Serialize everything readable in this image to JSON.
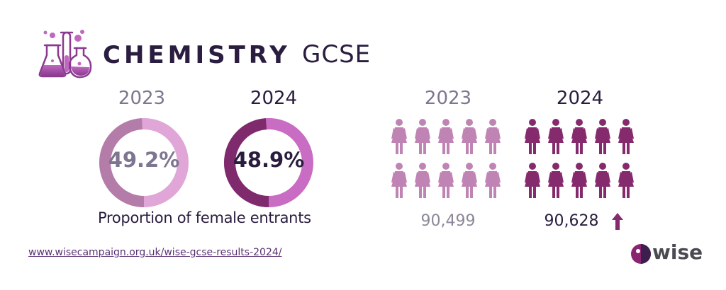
{
  "title": {
    "main": "CHEMISTRY",
    "sub": "GCSE"
  },
  "proportion": {
    "caption": "Proportion of female entrants",
    "items": [
      {
        "year": "2023",
        "value_label": "49.2%",
        "value": 49.2,
        "color_main": "#b47ca8",
        "color_accent": "#e0a6d8",
        "text_color": "#7e7590"
      },
      {
        "year": "2024",
        "value_label": "48.9%",
        "value": 48.9,
        "color_main": "#7e2a6c",
        "color_accent": "#c96cc3",
        "text_color": "#2a1d3f"
      }
    ]
  },
  "entrants": {
    "items": [
      {
        "year": "2023",
        "count": "90,499",
        "icon_color": "#c084b4",
        "icons_per_row": 5,
        "rows": 2
      },
      {
        "year": "2024",
        "count": "90,628",
        "icon_color": "#862a6e",
        "icons_per_row": 5,
        "rows": 2,
        "trend": "up",
        "trend_icon": "up-arrow-icon",
        "trend_color": "#862a6e"
      }
    ]
  },
  "footer": {
    "url": "www.wisecampaign.org.uk/wise-gcse-results-2024/",
    "brand": "wise",
    "brand_colors": {
      "outer": "#8a2470",
      "inner": "#3d1f4d",
      "dot": "#ffffff"
    }
  },
  "icons": {
    "logo": "chemistry-flasks-icon",
    "person": "female-person-icon"
  }
}
